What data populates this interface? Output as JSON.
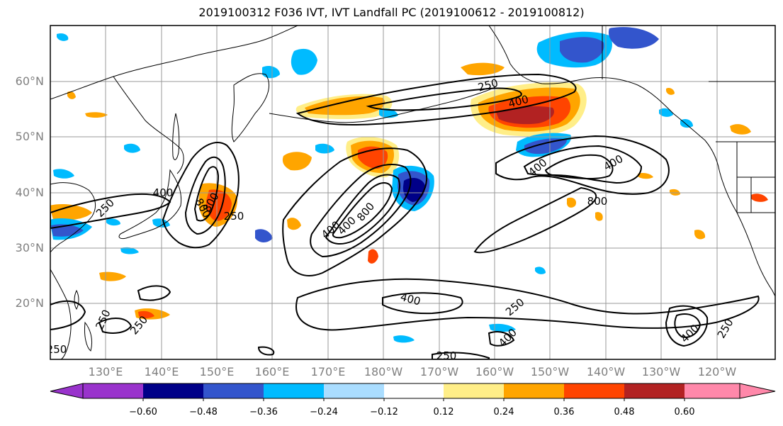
{
  "title": "2019100312 F036 IVT, IVT Landfall PC (2019100612 - 2019100812)",
  "lat_labels": [
    "60°N",
    "50°N",
    "40°N",
    "30°N",
    "20°N"
  ],
  "lon_labels": [
    "130°E",
    "140°E",
    "150°E",
    "160°E",
    "170°E",
    "180°W",
    "170°W",
    "160°W",
    "150°W",
    "140°W",
    "130°W",
    "120°W"
  ],
  "contour_labels": [
    "250",
    "400",
    "400",
    "800",
    "800",
    "400",
    "250",
    "250",
    "400",
    "800",
    "800",
    "400",
    "400",
    "250",
    "400",
    "250",
    "250",
    "250",
    "400",
    "400",
    "250",
    "250"
  ],
  "colorbar": {
    "colors": [
      "#9933cc",
      "#000088",
      "#3355cc",
      "#00bbff",
      "#aaddff",
      "#ffffff",
      "#ffee88",
      "#ffa500",
      "#ff4400",
      "#b22222",
      "#ff88aa"
    ],
    "tick_labels": [
      "−0.60",
      "−0.48",
      "−0.36",
      "−0.24",
      "−0.12",
      "0.12",
      "0.24",
      "0.36",
      "0.48",
      "0.60"
    ]
  },
  "colors": {
    "frame": "#000000",
    "grid": "#999999",
    "contour": "#000000",
    "coast": "#000000"
  }
}
